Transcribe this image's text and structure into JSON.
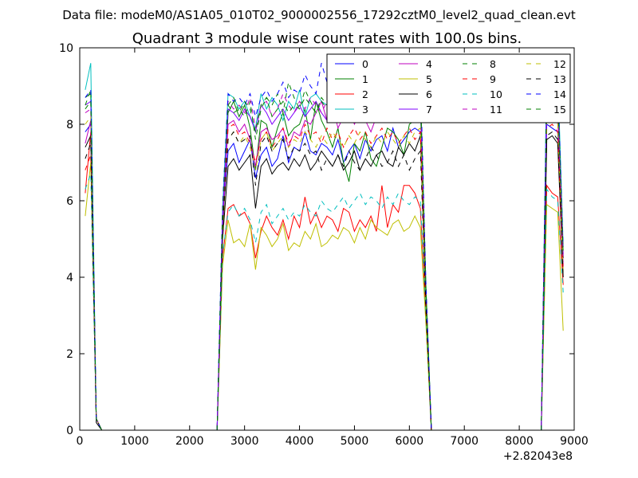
{
  "chart_data": {
    "type": "line",
    "suptitle": "Data file: modeM0/AS1A05_010T02_9000002556_17292cztM0_level2_quad_clean.evt",
    "title": "Quadrant 3 module wise count rates with 100.0s bins.",
    "xlabel": "",
    "ylabel": "",
    "offset_label": "+2.82043e8",
    "xlim": [
      0,
      9000
    ],
    "ylim": [
      0,
      10
    ],
    "x_ticks": [
      0,
      1000,
      2000,
      3000,
      4000,
      5000,
      6000,
      7000,
      8000,
      9000
    ],
    "y_ticks": [
      0,
      2,
      4,
      6,
      8,
      10
    ],
    "legend_position": "top-right",
    "x": {
      "seg1": [
        100,
        200,
        300,
        400
      ],
      "seg2": [
        2500,
        2600,
        2700,
        2800,
        2900,
        3000,
        3100,
        3200,
        3300,
        3400,
        3500,
        3600,
        3700,
        3800,
        3900,
        4000,
        4100,
        4200,
        4300,
        4400,
        4500,
        4600,
        4700,
        4800,
        4900,
        5000,
        5100,
        5200,
        5300,
        5400,
        5500,
        5600,
        5700,
        5800,
        5900,
        6000,
        6100,
        6200,
        6300,
        6400
      ],
      "seg3": [
        8400,
        8500,
        8600,
        8700,
        8800
      ]
    },
    "series": [
      {
        "name": "0",
        "color": "#0000ff",
        "dash": "solid",
        "seg1": [
          7.8,
          8.0,
          0.3,
          0.0
        ],
        "seg2": [
          0.0,
          5.5,
          7.3,
          7.5,
          7.0,
          7.3,
          7.6,
          6.6,
          7.2,
          7.4,
          6.9,
          7.1,
          7.7,
          7.0,
          7.4,
          7.3,
          7.8,
          7.3,
          7.2,
          7.5,
          7.4,
          7.2,
          7.6,
          7.0,
          7.3,
          7.5,
          7.1,
          7.6,
          7.3,
          7.6,
          7.7,
          7.3,
          7.9,
          7.4,
          7.6,
          7.8,
          7.9,
          7.8,
          3.5,
          0.0
        ],
        "seg3": [
          0.0,
          8.0,
          7.9,
          7.8,
          4.5
        ]
      },
      {
        "name": "1",
        "color": "#008000",
        "dash": "solid",
        "seg1": [
          8.7,
          8.8,
          0.3,
          0.0
        ],
        "seg2": [
          0.0,
          5.0,
          8.3,
          8.6,
          8.2,
          8.5,
          7.9,
          6.8,
          8.1,
          8.0,
          7.4,
          7.9,
          8.3,
          7.7,
          7.9,
          8.0,
          8.4,
          7.6,
          8.6,
          8.1,
          7.8,
          7.4,
          7.9,
          7.0,
          6.5,
          7.5,
          7.3,
          7.8,
          7.1,
          6.9,
          7.4,
          7.9,
          7.8,
          7.6,
          7.2,
          8.0,
          8.1,
          8.5,
          3.5,
          0.0
        ],
        "seg3": [
          0.0,
          8.7,
          9.3,
          9.1,
          4.5
        ]
      },
      {
        "name": "2",
        "color": "#ff0000",
        "dash": "solid",
        "seg1": [
          6.2,
          7.8,
          0.3,
          0.0
        ],
        "seg2": [
          0.0,
          4.5,
          5.8,
          5.9,
          5.6,
          5.7,
          5.4,
          4.5,
          5.2,
          5.6,
          5.3,
          5.1,
          5.5,
          5.0,
          5.6,
          5.3,
          6.1,
          5.4,
          5.7,
          5.3,
          5.6,
          5.5,
          5.2,
          5.8,
          5.7,
          5.2,
          5.5,
          5.3,
          5.6,
          5.2,
          6.4,
          5.3,
          5.9,
          5.7,
          6.4,
          6.4,
          6.2,
          5.8,
          3.0,
          0.0
        ],
        "seg3": [
          0.0,
          6.4,
          6.2,
          6.1,
          3.8
        ]
      },
      {
        "name": "3",
        "color": "#00bfbf",
        "dash": "solid",
        "seg1": [
          8.9,
          9.6,
          0.3,
          0.0
        ],
        "seg2": [
          0.0,
          5.8,
          8.8,
          8.7,
          8.4,
          8.6,
          8.2,
          7.9,
          8.8,
          8.4,
          8.7,
          8.5,
          8.1,
          8.6,
          8.4,
          8.9,
          8.2,
          8.7,
          8.8,
          8.6,
          8.5,
          8.3,
          8.8,
          8.4,
          8.6,
          8.3,
          8.9,
          8.5,
          8.7,
          8.4,
          8.6,
          8.8,
          8.2,
          8.5,
          8.9,
          8.7,
          8.4,
          8.9,
          3.8,
          0.0
        ],
        "seg3": [
          0.0,
          9.5,
          9.6,
          9.4,
          4.8
        ]
      },
      {
        "name": "4",
        "color": "#bf00bf",
        "dash": "solid",
        "seg1": [
          7.5,
          8.1,
          0.3,
          0.0
        ],
        "seg2": [
          0.0,
          5.3,
          8.0,
          8.1,
          7.8,
          8.0,
          7.6,
          6.9,
          7.8,
          7.9,
          7.6,
          7.7,
          7.9,
          7.4,
          7.8,
          7.7,
          8.1,
          8.0,
          8.3,
          8.6,
          8.1,
          8.5,
          7.9,
          8.2,
          8.4,
          8.0,
          8.3,
          8.1,
          7.8,
          8.2,
          8.4,
          8.6,
          8.2,
          8.5,
          8.7,
          8.3,
          8.6,
          8.9,
          3.6,
          0.0
        ],
        "seg3": [
          0.0,
          8.3,
          8.5,
          8.2,
          4.3
        ]
      },
      {
        "name": "5",
        "color": "#bfbf00",
        "dash": "solid",
        "seg1": [
          5.6,
          7.0,
          0.3,
          0.0
        ],
        "seg2": [
          0.0,
          4.3,
          5.5,
          4.9,
          5.0,
          4.8,
          5.4,
          4.2,
          5.3,
          5.1,
          4.8,
          5.0,
          5.4,
          4.7,
          4.9,
          4.8,
          5.2,
          5.0,
          5.4,
          4.8,
          4.9,
          5.1,
          5.0,
          5.3,
          5.2,
          4.9,
          5.3,
          5.0,
          5.5,
          5.3,
          5.2,
          5.1,
          5.4,
          5.5,
          5.2,
          5.3,
          5.6,
          5.3,
          2.8,
          0.0
        ],
        "seg3": [
          0.0,
          5.9,
          5.8,
          5.7,
          2.6
        ]
      },
      {
        "name": "6",
        "color": "#000000",
        "dash": "solid",
        "seg1": [
          7.4,
          7.7,
          0.2,
          0.0
        ],
        "seg2": [
          0.0,
          5.0,
          6.9,
          7.1,
          6.8,
          7.0,
          7.2,
          5.8,
          6.9,
          7.1,
          6.7,
          6.9,
          7.0,
          6.8,
          7.1,
          6.9,
          7.2,
          6.8,
          7.0,
          7.3,
          7.1,
          6.9,
          7.2,
          6.8,
          7.0,
          7.3,
          6.8,
          7.1,
          6.9,
          7.2,
          7.3,
          7.0,
          6.9,
          7.4,
          7.2,
          7.5,
          7.3,
          7.7,
          3.2,
          0.0
        ],
        "seg3": [
          0.0,
          7.6,
          7.7,
          7.5,
          4.0
        ]
      },
      {
        "name": "7",
        "color": "#7f00ff",
        "dash": "solid",
        "seg1": [
          8.5,
          8.6,
          0.3,
          0.0
        ],
        "seg2": [
          0.0,
          5.6,
          8.4,
          8.3,
          8.1,
          8.4,
          8.2,
          7.8,
          8.5,
          8.3,
          8.0,
          8.2,
          8.4,
          8.1,
          8.3,
          8.5,
          8.2,
          8.4,
          8.6,
          8.3,
          8.1,
          8.4,
          8.2,
          8.5,
          8.3,
          8.4,
          8.2,
          8.6,
          8.3,
          8.5,
          8.1,
          8.4,
          8.6,
          8.3,
          8.5,
          8.2,
          8.4,
          8.6,
          3.7,
          0.0
        ],
        "seg3": [
          0.0,
          8.8,
          8.9,
          8.7,
          4.6
        ]
      },
      {
        "name": "8",
        "color": "#008000",
        "dash": "dashed",
        "seg1": [
          8.5,
          8.9,
          0.3,
          0.0
        ],
        "seg2": [
          0.0,
          5.5,
          8.5,
          8.3,
          8.4,
          8.2,
          8.6,
          7.6,
          8.4,
          8.7,
          8.5,
          8.8,
          8.3,
          9.1,
          8.7,
          8.4,
          8.9,
          8.6,
          8.3,
          8.7,
          8.5,
          9.0,
          8.6,
          8.8,
          8.4,
          8.7,
          8.9,
          8.5,
          8.8,
          8.6,
          8.4,
          8.9,
          8.7,
          8.5,
          8.8,
          8.6,
          8.9,
          9.0,
          3.8,
          0.0
        ],
        "seg3": [
          0.0,
          8.9,
          9.2,
          9.0,
          4.7
        ]
      },
      {
        "name": "9",
        "color": "#ff0000",
        "dash": "dashed",
        "seg1": [
          6.8,
          7.2,
          0.3,
          0.0
        ],
        "seg2": [
          0.0,
          5.2,
          7.9,
          8.0,
          7.7,
          7.8,
          7.5,
          7.0,
          7.6,
          7.8,
          7.4,
          7.6,
          7.9,
          7.5,
          7.7,
          7.6,
          8.0,
          7.7,
          7.8,
          7.5,
          7.9,
          7.6,
          7.8,
          7.4,
          7.7,
          7.9,
          7.6,
          7.8,
          7.5,
          7.7,
          7.9,
          7.6,
          7.8,
          7.5,
          7.7,
          7.9,
          7.6,
          7.8,
          3.4,
          0.0
        ],
        "seg3": [
          0.0,
          7.9,
          8.0,
          7.8,
          4.2
        ]
      },
      {
        "name": "10",
        "color": "#00bfbf",
        "dash": "dashed",
        "seg1": [
          6.3,
          6.7,
          0.3,
          0.0
        ],
        "seg2": [
          0.0,
          4.6,
          5.7,
          5.9,
          5.6,
          5.8,
          5.5,
          4.9,
          5.7,
          5.9,
          5.4,
          5.6,
          5.8,
          5.5,
          5.7,
          5.6,
          5.9,
          5.7,
          5.6,
          6.0,
          5.8,
          5.7,
          5.9,
          6.1,
          5.8,
          6.0,
          6.2,
          5.9,
          6.1,
          6.0,
          5.8,
          6.1,
          5.9,
          6.2,
          6.0,
          5.9,
          6.1,
          6.0,
          3.1,
          0.0
        ],
        "seg3": [
          0.0,
          6.3,
          6.1,
          6.0,
          3.6
        ]
      },
      {
        "name": "11",
        "color": "#bf00bf",
        "dash": "dashed",
        "seg1": [
          8.3,
          8.4,
          0.3,
          0.0
        ],
        "seg2": [
          0.0,
          5.4,
          8.6,
          8.4,
          8.5,
          8.3,
          8.7,
          7.9,
          8.5,
          8.6,
          8.2,
          8.4,
          8.8,
          8.5,
          8.3,
          8.6,
          8.4,
          8.7,
          8.5,
          8.3,
          8.6,
          8.4,
          8.8,
          8.5,
          8.7,
          8.3,
          8.6,
          8.4,
          8.5,
          8.7,
          8.4,
          8.6,
          8.3,
          8.5,
          8.7,
          8.4,
          8.6,
          8.8,
          3.7,
          0.0
        ],
        "seg3": [
          0.0,
          8.6,
          8.8,
          8.5,
          4.4
        ]
      },
      {
        "name": "12",
        "color": "#bfbf00",
        "dash": "dashed",
        "seg1": [
          8.0,
          8.2,
          0.3,
          0.0
        ],
        "seg2": [
          0.0,
          5.1,
          7.6,
          7.8,
          7.5,
          7.7,
          7.4,
          6.8,
          7.6,
          7.8,
          7.3,
          7.5,
          7.7,
          7.4,
          7.6,
          7.5,
          7.8,
          7.6,
          7.4,
          7.7,
          7.5,
          7.8,
          7.6,
          7.4,
          7.7,
          7.5,
          7.8,
          7.6,
          7.4,
          7.7,
          7.5,
          7.8,
          7.6,
          7.4,
          7.7,
          7.5,
          7.8,
          7.9,
          3.4,
          0.0
        ],
        "seg3": [
          0.0,
          8.1,
          8.2,
          8.0,
          4.1
        ]
      },
      {
        "name": "13",
        "color": "#000000",
        "dash": "dashed",
        "seg1": [
          7.1,
          7.5,
          0.3,
          0.0
        ],
        "seg2": [
          0.0,
          5.3,
          7.6,
          7.8,
          7.5,
          7.6,
          7.7,
          6.4,
          7.5,
          7.7,
          7.3,
          7.5,
          7.6,
          7.1,
          7.4,
          7.3,
          7.5,
          7.2,
          7.3,
          6.8,
          7.1,
          6.9,
          7.2,
          6.9,
          7.3,
          7.0,
          6.8,
          7.1,
          7.4,
          7.2,
          6.9,
          7.0,
          7.3,
          6.9,
          7.2,
          6.8,
          7.1,
          7.3,
          3.3,
          0.0
        ],
        "seg3": [
          0.0,
          7.7,
          7.8,
          7.6,
          4.0
        ]
      },
      {
        "name": "14",
        "color": "#0000ff",
        "dash": "dashed",
        "seg1": [
          8.7,
          8.9,
          0.3,
          0.0
        ],
        "seg2": [
          0.0,
          5.9,
          8.8,
          8.6,
          8.7,
          8.5,
          8.8,
          8.2,
          8.7,
          8.9,
          8.6,
          8.8,
          9.1,
          8.7,
          8.9,
          8.8,
          9.3,
          9.0,
          8.8,
          9.6,
          9.1,
          9.4,
          8.9,
          9.2,
          9.0,
          9.3,
          8.9,
          9.5,
          9.1,
          9.2,
          9.0,
          9.4,
          9.1,
          8.9,
          9.3,
          9.0,
          9.2,
          9.4,
          3.9,
          0.0
        ],
        "seg3": [
          0.0,
          9.2,
          9.5,
          9.1,
          4.8
        ]
      },
      {
        "name": "15",
        "color": "#008000",
        "dash": "dashed",
        "seg1": [
          8.4,
          8.6,
          0.3,
          0.0
        ],
        "seg2": [
          0.0,
          5.7,
          8.5,
          8.7,
          8.3,
          8.6,
          8.4,
          7.8,
          8.5,
          8.7,
          8.2,
          8.4,
          8.6,
          8.3,
          8.5,
          8.4,
          8.7,
          8.5,
          8.3,
          8.6,
          8.4,
          8.7,
          8.5,
          8.3,
          8.6,
          8.4,
          8.7,
          8.5,
          8.3,
          8.6,
          8.4,
          8.7,
          8.5,
          8.3,
          8.6,
          8.4,
          8.7,
          8.8,
          3.7,
          0.0
        ],
        "seg3": [
          0.0,
          8.8,
          9.0,
          8.7,
          4.6
        ]
      }
    ]
  }
}
